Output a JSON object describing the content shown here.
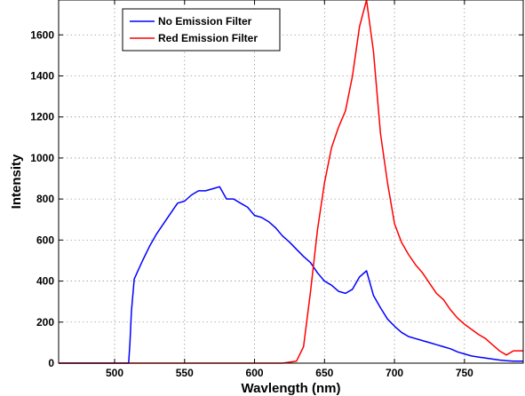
{
  "chart_data": {
    "type": "line",
    "title": "",
    "xlabel": "Wavlength (nm)",
    "ylabel": "Intensity",
    "xlim": [
      460,
      792
    ],
    "ylim": [
      0,
      1770
    ],
    "xticks": [
      500,
      550,
      600,
      650,
      700,
      750
    ],
    "yticks": [
      0,
      200,
      400,
      600,
      800,
      1000,
      1200,
      1400,
      1600
    ],
    "grid": true,
    "legend_position": "top-left",
    "series": [
      {
        "name": "No Emission Filter",
        "color": "#0000ff",
        "x": [
          460,
          470,
          480,
          490,
          500,
          505,
          510,
          511,
          512,
          514,
          516,
          520,
          525,
          530,
          535,
          540,
          545,
          550,
          555,
          560,
          565,
          570,
          575,
          580,
          585,
          590,
          595,
          600,
          605,
          610,
          615,
          620,
          625,
          630,
          635,
          640,
          645,
          650,
          655,
          660,
          665,
          670,
          675,
          680,
          685,
          690,
          695,
          700,
          705,
          710,
          715,
          720,
          725,
          730,
          735,
          740,
          745,
          750,
          755,
          760,
          765,
          770,
          775,
          780,
          785,
          792
        ],
        "y": [
          0,
          0,
          0,
          0,
          0,
          0,
          0,
          100,
          250,
          410,
          440,
          500,
          570,
          630,
          680,
          730,
          780,
          790,
          820,
          840,
          840,
          850,
          860,
          800,
          800,
          780,
          760,
          720,
          710,
          690,
          660,
          620,
          590,
          555,
          520,
          490,
          440,
          400,
          380,
          350,
          340,
          360,
          420,
          450,
          330,
          270,
          215,
          180,
          150,
          130,
          120,
          110,
          100,
          90,
          80,
          70,
          55,
          45,
          35,
          30,
          25,
          20,
          15,
          12,
          10,
          10
        ]
      },
      {
        "name": "Red Emission Filter",
        "color": "#ff0000",
        "x": [
          460,
          500,
          550,
          600,
          620,
          630,
          635,
          640,
          645,
          650,
          655,
          660,
          665,
          670,
          675,
          680,
          685,
          690,
          695,
          700,
          705,
          710,
          715,
          720,
          725,
          730,
          735,
          740,
          745,
          750,
          755,
          760,
          765,
          770,
          775,
          780,
          785,
          792
        ],
        "y": [
          0,
          0,
          0,
          0,
          0,
          10,
          80,
          350,
          650,
          880,
          1050,
          1150,
          1230,
          1400,
          1640,
          1770,
          1520,
          1120,
          880,
          680,
          590,
          530,
          480,
          440,
          390,
          340,
          310,
          260,
          220,
          190,
          165,
          140,
          120,
          90,
          60,
          40,
          60,
          60
        ]
      }
    ]
  }
}
